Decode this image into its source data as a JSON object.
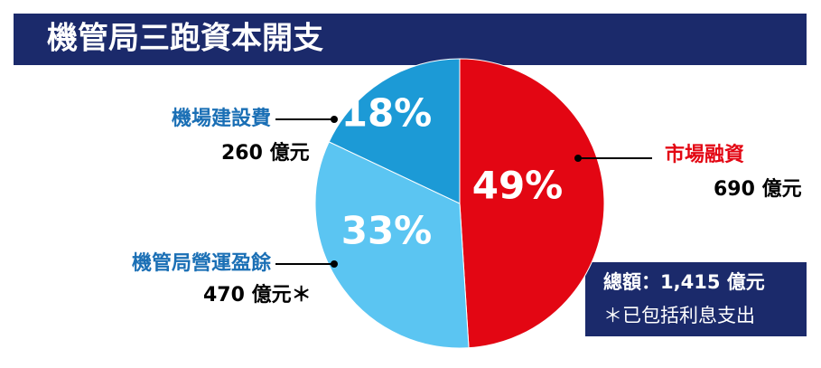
{
  "chart_data": {
    "type": "pie",
    "title": "機管局三跑資本開支",
    "categories": [
      "市場融資",
      "機管局營運盈餘",
      "機場建設費"
    ],
    "values": [
      49,
      33,
      18
    ],
    "value_labels": [
      "49%",
      "33%",
      "18%"
    ],
    "colors": [
      "#e30613",
      "#5bc5f2",
      "#1c9ad6"
    ],
    "label_colors": [
      "#e30613",
      "#1a6fb5",
      "#1a6fb5"
    ],
    "amount_labels": [
      "690 億元",
      "470 億元＊",
      "260 億元"
    ],
    "total_label": "總額：1,415 億元",
    "footnote": "＊已包括利息支出"
  }
}
